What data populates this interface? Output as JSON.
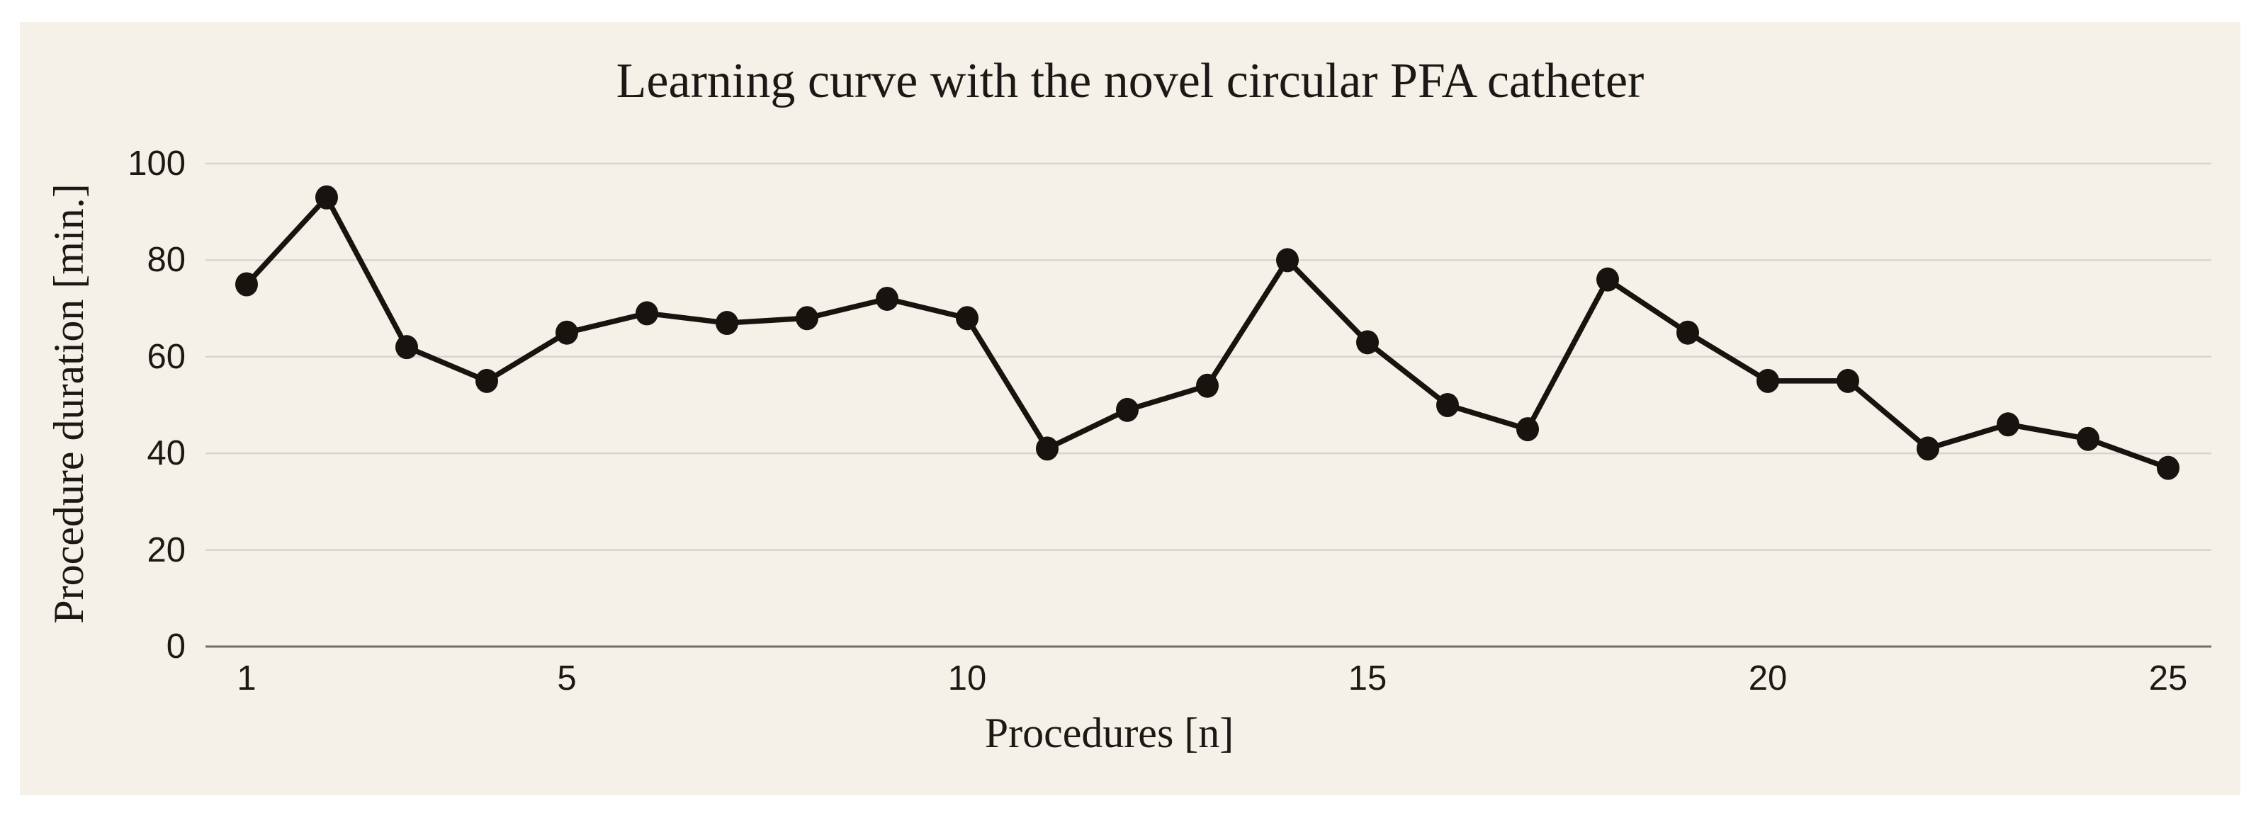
{
  "figure": {
    "title": "Learning curve with the novel circular PFA catheter",
    "xlabel": "Procedures [n]",
    "ylabel": "Procedure duration [min.]"
  },
  "chart_data": {
    "type": "line",
    "title": "Learning curve with the novel circular PFA catheter",
    "xlabel": "Procedures [n]",
    "ylabel": "Procedure duration [min.]",
    "series": [
      {
        "name": "Procedure duration",
        "marker": "filled-circle",
        "x": [
          1,
          2,
          3,
          4,
          5,
          6,
          7,
          8,
          9,
          10,
          11,
          12,
          13,
          14,
          15,
          16,
          17,
          18,
          19,
          20,
          21,
          22,
          23,
          24,
          25
        ],
        "values": [
          75,
          93,
          62,
          55,
          65,
          69,
          67,
          68,
          72,
          68,
          41,
          49,
          54,
          80,
          63,
          50,
          45,
          76,
          65,
          55,
          55,
          41,
          46,
          43,
          37
        ]
      }
    ],
    "xticks": [
      1,
      5,
      10,
      15,
      20,
      25
    ],
    "yticks": [
      0,
      20,
      40,
      60,
      80,
      100
    ],
    "xlim": [
      1,
      25
    ],
    "ylim": [
      0,
      100
    ],
    "grid": "horizontal",
    "legend": "none"
  },
  "colors": {
    "page_margin": "#ffffff",
    "panel_background": "#f5f1e9",
    "gridline": "#d8d5cf",
    "zero_axis_line": "#6f6d68",
    "series_line": "#17130e",
    "text": "#1b1915"
  }
}
